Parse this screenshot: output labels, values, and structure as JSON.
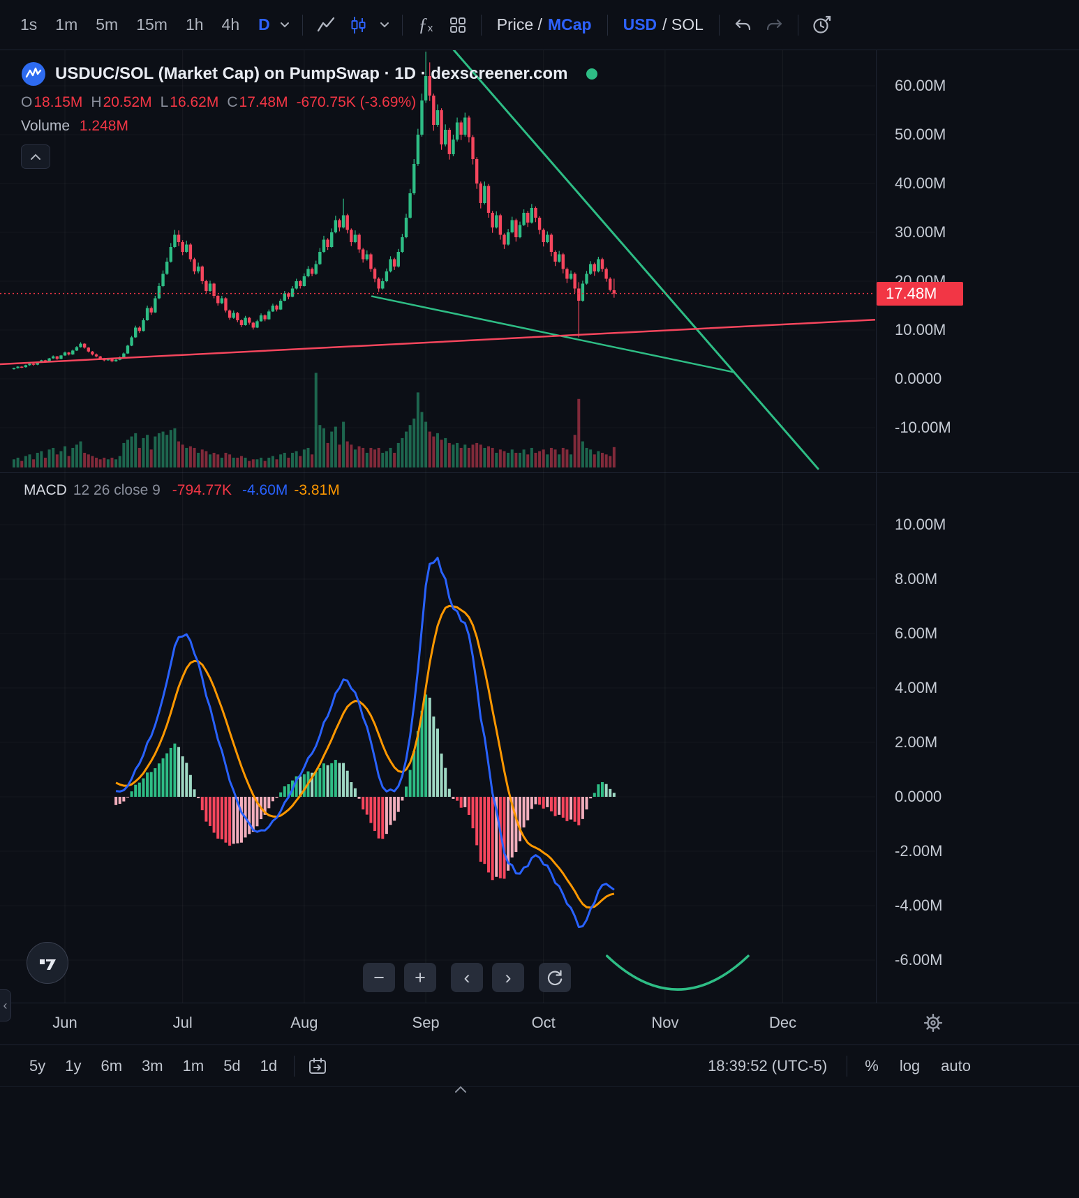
{
  "tb": {
    "tf": [
      "1s",
      "1m",
      "5m",
      "15m",
      "1h",
      "4h"
    ],
    "tf_active": "D",
    "price_label": "Price /",
    "mcap": "MCap",
    "usd": "USD",
    "sol": "/ SOL"
  },
  "hdr": {
    "title": "USDUC/SOL (Market Cap) on PumpSwap · 1D · dexscreener.com",
    "o_k": "O",
    "o": "18.15M",
    "h_k": "H",
    "h": "20.52M",
    "l_k": "L",
    "l": "16.62M",
    "c_k": "C",
    "c": "17.48M",
    "chg": "-670.75K (-3.69%)",
    "vol_k": "Volume",
    "vol": "1.248M"
  },
  "pax": [
    {
      "t": "60.00M",
      "v": 60
    },
    {
      "t": "50.00M",
      "v": 50
    },
    {
      "t": "40.00M",
      "v": 40
    },
    {
      "t": "30.00M",
      "v": 30
    },
    {
      "t": "20.00M",
      "v": 20
    },
    {
      "t": "10.00M",
      "v": 10
    },
    {
      "t": "0.0000",
      "v": 0
    },
    {
      "t": "-10.00M",
      "v": -10
    }
  ],
  "current": {
    "t": "17.48M",
    "v": 17.48
  },
  "macd": {
    "name": "MACD",
    "params": "12 26 close 9",
    "hist": "-794.77K",
    "macd": "-4.60M",
    "signal": "-3.81M"
  },
  "max": [
    {
      "t": "10.00M",
      "v": 10
    },
    {
      "t": "8.00M",
      "v": 8
    },
    {
      "t": "6.00M",
      "v": 6
    },
    {
      "t": "4.00M",
      "v": 4
    },
    {
      "t": "2.00M",
      "v": 2
    },
    {
      "t": "0.0000",
      "v": 0
    },
    {
      "t": "-2.00M",
      "v": -2
    },
    {
      "t": "-4.00M",
      "v": -4
    },
    {
      "t": "-6.00M",
      "v": -6
    }
  ],
  "months": [
    "Jun",
    "Jul",
    "Aug",
    "Sep",
    "Oct",
    "Nov",
    "Dec"
  ],
  "ranges": [
    "5y",
    "1y",
    "6m",
    "3m",
    "1m",
    "5d",
    "1d"
  ],
  "bt": {
    "clock": "18:39:52 (UTC-5)",
    "pct": "%",
    "log": "log",
    "auto": "auto"
  },
  "nav": {
    "minus": "−",
    "plus": "+",
    "left": "‹",
    "right": "›"
  },
  "chart_data": {
    "type": "candlestick",
    "title": "USDUC/SOL (Market Cap) on PumpSwap · 1D · dexscreener.com",
    "interval": "1D",
    "units": "USD market cap, millions",
    "x_axis_months": [
      "Jun",
      "Jul",
      "Aug",
      "Sep",
      "Oct",
      "Nov",
      "Dec"
    ],
    "price_axis_ticks": [
      "60.00M",
      "50.00M",
      "40.00M",
      "30.00M",
      "20.00M",
      "10.00M",
      "0.0000",
      "-10.00M"
    ],
    "last_bar": {
      "open": "18.15M",
      "high": "20.52M",
      "low": "16.62M",
      "close": "17.48M",
      "change": "-670.75K (-3.69%)",
      "volume": "1.248M"
    },
    "current": {
      "t": "17.48M",
      "v": 17.48
    },
    "ohlcv": [
      [
        2.0,
        2.3,
        1.9,
        2.2,
        0.5
      ],
      [
        2.2,
        2.6,
        2.1,
        2.5,
        0.6
      ],
      [
        2.5,
        2.6,
        2.2,
        2.4,
        0.4
      ],
      [
        2.4,
        2.9,
        2.3,
        2.8,
        0.7
      ],
      [
        2.8,
        3.2,
        2.7,
        3.1,
        0.8
      ],
      [
        3.1,
        3.2,
        2.7,
        2.9,
        0.5
      ],
      [
        2.9,
        3.5,
        2.8,
        3.4,
        0.9
      ],
      [
        3.4,
        3.9,
        3.3,
        3.8,
        1.0
      ],
      [
        3.8,
        3.9,
        3.3,
        3.5,
        0.6
      ],
      [
        3.5,
        4.3,
        3.4,
        4.2,
        1.1
      ],
      [
        4.2,
        4.8,
        4.1,
        4.6,
        1.2
      ],
      [
        4.6,
        4.7,
        3.9,
        4.1,
        0.8
      ],
      [
        4.1,
        4.9,
        4.0,
        4.8,
        1.0
      ],
      [
        4.8,
        5.6,
        4.7,
        5.4,
        1.3
      ],
      [
        5.4,
        5.5,
        4.8,
        5.0,
        0.7
      ],
      [
        5.0,
        6.0,
        4.9,
        5.8,
        1.2
      ],
      [
        5.8,
        6.7,
        5.7,
        6.5,
        1.4
      ],
      [
        6.5,
        7.5,
        6.4,
        7.2,
        1.6
      ],
      [
        7.2,
        7.3,
        6.2,
        6.4,
        0.9
      ],
      [
        6.4,
        6.5,
        5.4,
        5.6,
        0.8
      ],
      [
        5.6,
        5.7,
        4.8,
        5.0,
        0.7
      ],
      [
        5.0,
        5.2,
        4.4,
        4.6,
        0.6
      ],
      [
        4.6,
        4.7,
        4.0,
        4.2,
        0.5
      ],
      [
        4.2,
        4.3,
        3.6,
        3.8,
        0.6
      ],
      [
        3.8,
        4.3,
        3.7,
        4.1,
        0.5
      ],
      [
        4.1,
        4.2,
        3.4,
        3.6,
        0.6
      ],
      [
        3.6,
        4.1,
        3.5,
        3.9,
        0.5
      ],
      [
        3.9,
        4.6,
        3.8,
        4.4,
        0.7
      ],
      [
        4.4,
        5.4,
        4.3,
        5.2,
        1.5
      ],
      [
        5.2,
        7.0,
        5.1,
        6.8,
        1.7
      ],
      [
        6.8,
        8.8,
        6.7,
        8.5,
        1.9
      ],
      [
        8.5,
        10.9,
        8.4,
        10.5,
        2.1
      ],
      [
        10.5,
        10.8,
        9.4,
        9.8,
        1.2
      ],
      [
        9.8,
        12.4,
        9.7,
        12.0,
        1.8
      ],
      [
        12.0,
        15.0,
        11.9,
        14.5,
        2.0
      ],
      [
        14.5,
        14.8,
        13.1,
        13.6,
        1.1
      ],
      [
        13.6,
        17.0,
        13.5,
        16.5,
        1.9
      ],
      [
        16.5,
        19.6,
        16.3,
        19.0,
        2.1
      ],
      [
        19.0,
        22.2,
        18.8,
        21.5,
        2.2
      ],
      [
        21.5,
        24.8,
        21.3,
        24.0,
        2.0
      ],
      [
        24.0,
        27.8,
        23.8,
        27.0,
        2.3
      ],
      [
        27.0,
        30.5,
        26.8,
        29.5,
        2.4
      ],
      [
        29.5,
        30.4,
        27.2,
        28.0,
        1.6
      ],
      [
        28.0,
        28.4,
        25.3,
        26.0,
        1.4
      ],
      [
        26.0,
        28.3,
        25.8,
        27.5,
        1.2
      ],
      [
        27.5,
        27.8,
        24.0,
        24.5,
        1.3
      ],
      [
        24.5,
        24.8,
        21.4,
        22.0,
        1.2
      ],
      [
        22.0,
        23.8,
        21.6,
        23.0,
        0.9
      ],
      [
        23.0,
        23.2,
        19.4,
        20.0,
        1.1
      ],
      [
        20.0,
        20.3,
        17.4,
        18.0,
        1.0
      ],
      [
        18.0,
        20.1,
        17.8,
        19.5,
        0.8
      ],
      [
        19.5,
        19.7,
        16.5,
        17.0,
        0.9
      ],
      [
        17.0,
        17.2,
        15.0,
        15.5,
        0.8
      ],
      [
        15.5,
        17.0,
        15.3,
        16.5,
        0.6
      ],
      [
        16.5,
        16.7,
        13.6,
        14.0,
        0.9
      ],
      [
        14.0,
        14.2,
        12.1,
        12.5,
        0.8
      ],
      [
        12.5,
        14.0,
        12.3,
        13.5,
        0.6
      ],
      [
        13.5,
        13.7,
        11.6,
        12.0,
        0.6
      ],
      [
        12.0,
        12.2,
        10.6,
        11.0,
        0.7
      ],
      [
        11.0,
        12.9,
        10.9,
        12.5,
        0.6
      ],
      [
        12.5,
        12.7,
        11.1,
        11.5,
        0.4
      ],
      [
        11.5,
        11.7,
        10.1,
        10.5,
        0.5
      ],
      [
        10.5,
        12.1,
        10.4,
        11.8,
        0.5
      ],
      [
        11.8,
        13.4,
        11.7,
        13.0,
        0.6
      ],
      [
        13.0,
        13.2,
        11.8,
        12.2,
        0.4
      ],
      [
        12.2,
        14.2,
        12.1,
        13.8,
        0.6
      ],
      [
        13.8,
        15.4,
        13.7,
        15.0,
        0.7
      ],
      [
        15.0,
        15.2,
        13.8,
        14.2,
        0.5
      ],
      [
        14.2,
        16.4,
        14.1,
        16.0,
        0.8
      ],
      [
        16.0,
        18.0,
        15.9,
        17.5,
        0.9
      ],
      [
        17.5,
        17.7,
        16.3,
        16.8,
        0.6
      ],
      [
        16.8,
        19.0,
        16.7,
        18.5,
        0.9
      ],
      [
        18.5,
        20.5,
        18.3,
        20.0,
        1.0
      ],
      [
        20.0,
        20.2,
        18.5,
        19.0,
        0.7
      ],
      [
        19.0,
        21.6,
        18.9,
        21.0,
        1.1
      ],
      [
        21.0,
        23.1,
        20.8,
        22.5,
        1.2
      ],
      [
        22.5,
        22.8,
        21.0,
        21.5,
        0.8
      ],
      [
        21.5,
        24.2,
        21.3,
        23.5,
        5.8
      ],
      [
        23.5,
        26.8,
        23.3,
        26.0,
        2.6
      ],
      [
        26.0,
        29.3,
        25.8,
        28.5,
        2.4
      ],
      [
        28.5,
        28.8,
        26.4,
        27.0,
        1.5
      ],
      [
        27.0,
        30.8,
        26.8,
        30.0,
        2.2
      ],
      [
        30.0,
        33.4,
        29.8,
        32.5,
        2.5
      ],
      [
        32.5,
        32.8,
        30.2,
        31.0,
        1.4
      ],
      [
        31.0,
        36.9,
        30.8,
        33.5,
        2.8
      ],
      [
        33.5,
        33.8,
        29.8,
        30.5,
        1.6
      ],
      [
        30.5,
        30.8,
        27.2,
        28.0,
        1.4
      ],
      [
        28.0,
        30.4,
        27.8,
        29.5,
        1.1
      ],
      [
        29.5,
        29.8,
        25.8,
        26.5,
        1.3
      ],
      [
        26.5,
        26.8,
        23.8,
        24.5,
        1.2
      ],
      [
        24.5,
        26.3,
        24.2,
        25.5,
        0.9
      ],
      [
        25.5,
        25.8,
        21.9,
        22.5,
        1.2
      ],
      [
        22.5,
        22.8,
        19.8,
        20.5,
        1.1
      ],
      [
        20.5,
        20.8,
        17.8,
        18.5,
        1.2
      ],
      [
        18.5,
        20.6,
        18.3,
        20.0,
        0.9
      ],
      [
        20.0,
        22.6,
        19.8,
        22.0,
        1.0
      ],
      [
        22.0,
        25.1,
        21.8,
        24.5,
        1.2
      ],
      [
        24.5,
        24.8,
        22.3,
        23.0,
        0.9
      ],
      [
        23.0,
        26.6,
        22.8,
        26.0,
        1.5
      ],
      [
        26.0,
        29.7,
        25.8,
        29.0,
        1.8
      ],
      [
        29.0,
        33.8,
        28.8,
        33.0,
        2.2
      ],
      [
        33.0,
        38.9,
        32.8,
        38.0,
        2.6
      ],
      [
        38.0,
        45.0,
        37.7,
        44.0,
        3.0
      ],
      [
        44.0,
        51.2,
        43.6,
        50.0,
        4.6
      ],
      [
        50.0,
        58.4,
        49.6,
        57.0,
        3.4
      ],
      [
        57.0,
        67.0,
        56.5,
        62.0,
        2.8
      ],
      [
        62.0,
        64.8,
        56.9,
        58.0,
        2.2
      ],
      [
        58.0,
        58.4,
        50.8,
        52.0,
        1.9
      ],
      [
        52.0,
        56.2,
        51.6,
        55.0,
        2.1
      ],
      [
        55.0,
        55.4,
        46.9,
        48.0,
        1.7
      ],
      [
        48.0,
        52.1,
        47.6,
        51.0,
        1.8
      ],
      [
        51.0,
        51.4,
        44.9,
        46.0,
        1.5
      ],
      [
        46.0,
        50.0,
        45.6,
        49.0,
        1.4
      ],
      [
        49.0,
        53.5,
        48.6,
        52.5,
        1.5
      ],
      [
        52.5,
        52.9,
        48.9,
        50.0,
        1.2
      ],
      [
        50.0,
        54.5,
        49.6,
        53.5,
        1.4
      ],
      [
        53.5,
        53.9,
        48.4,
        49.5,
        1.2
      ],
      [
        49.5,
        49.9,
        43.9,
        45.0,
        1.4
      ],
      [
        45.0,
        45.4,
        38.9,
        40.0,
        1.5
      ],
      [
        40.0,
        40.4,
        34.9,
        36.0,
        1.4
      ],
      [
        36.0,
        40.4,
        35.7,
        39.5,
        1.2
      ],
      [
        39.5,
        39.9,
        33.0,
        34.0,
        1.3
      ],
      [
        34.0,
        34.4,
        29.9,
        31.0,
        1.2
      ],
      [
        31.0,
        34.3,
        30.8,
        33.5,
        0.9
      ],
      [
        33.5,
        33.8,
        28.5,
        29.5,
        1.1
      ],
      [
        29.5,
        29.8,
        26.6,
        27.5,
        1.0
      ],
      [
        27.5,
        30.7,
        27.3,
        30.0,
        0.9
      ],
      [
        30.0,
        33.2,
        29.8,
        32.5,
        1.1
      ],
      [
        32.5,
        32.8,
        28.1,
        29.0,
        0.9
      ],
      [
        29.0,
        32.2,
        28.8,
        31.5,
        0.9
      ],
      [
        31.5,
        34.7,
        31.3,
        34.0,
        1.1
      ],
      [
        34.0,
        34.4,
        31.1,
        32.0,
        0.8
      ],
      [
        32.0,
        35.8,
        31.8,
        35.0,
        1.2
      ],
      [
        35.0,
        35.3,
        32.1,
        33.0,
        0.9
      ],
      [
        33.0,
        33.3,
        29.6,
        30.5,
        1.0
      ],
      [
        30.5,
        30.8,
        27.1,
        28.0,
        1.1
      ],
      [
        28.0,
        30.2,
        27.8,
        29.5,
        0.8
      ],
      [
        29.5,
        29.8,
        25.1,
        26.0,
        1.2
      ],
      [
        26.0,
        26.3,
        23.1,
        24.0,
        1.1
      ],
      [
        24.0,
        26.2,
        23.8,
        25.5,
        0.8
      ],
      [
        25.5,
        25.8,
        21.6,
        22.5,
        1.2
      ],
      [
        22.5,
        22.8,
        19.6,
        20.5,
        1.1
      ],
      [
        20.5,
        22.2,
        20.3,
        21.5,
        0.8
      ],
      [
        21.5,
        21.8,
        17.6,
        18.5,
        2.0
      ],
      [
        18.5,
        19.8,
        8.5,
        16.0,
        4.2
      ],
      [
        16.0,
        20.1,
        15.8,
        19.5,
        1.6
      ],
      [
        19.5,
        22.1,
        19.3,
        21.5,
        1.2
      ],
      [
        21.5,
        24.1,
        21.3,
        23.5,
        1.1
      ],
      [
        23.5,
        23.8,
        21.1,
        22.0,
        0.8
      ],
      [
        22.0,
        25.0,
        21.8,
        24.5,
        1.0
      ],
      [
        24.5,
        24.8,
        21.9,
        22.5,
        0.9
      ],
      [
        22.5,
        22.8,
        19.9,
        20.5,
        0.8
      ],
      [
        20.5,
        20.8,
        17.9,
        18.2,
        0.7
      ],
      [
        18.15,
        20.52,
        16.62,
        17.48,
        1.248
      ]
    ],
    "trendlines": [
      {
        "name": "descending-resistance",
        "i1": 106,
        "v1": 73.0,
        "i2": 205,
        "v2": -18.4,
        "color": "#2ebd85",
        "width": 3
      },
      {
        "name": "minor-descending-line",
        "i1": 91.3,
        "v1": 16.9,
        "i2": 183.3,
        "v2": 1.4,
        "color": "#2ebd85",
        "width": 2.5
      },
      {
        "name": "ascending-support",
        "i1": -3.6,
        "v1": 3.0,
        "i2": 219.6,
        "v2": 12.1,
        "color": "#f6465d",
        "width": 2.5
      }
    ],
    "sub_chart": {
      "type": "macd",
      "params": {
        "fast": 12,
        "slow": 26,
        "source": "close",
        "signal": 9
      },
      "note": "MACD line = EMA12-EMA26 of ohlcv closes; signal = EMA9 of MACD; histogram = MACD-signal",
      "axis_ticks": [
        "10.00M",
        "8.00M",
        "6.00M",
        "4.00M",
        "2.00M",
        "0.0000",
        "-2.00M",
        "-4.00M",
        "-6.00M"
      ],
      "last_values": {
        "histogram": "-794.77K",
        "macd": "-4.60M",
        "signal": "-3.81M"
      },
      "colors": {
        "macd_line": "#2962ff",
        "signal_line": "#ff9800",
        "hist_up": "#2ebd85",
        "hist_up_falling": "#9fd9c4",
        "hist_down": "#f6465d",
        "hist_down_rising": "#f2aebc"
      }
    },
    "arc": {
      "name": "green-arc-annotation",
      "i1": 151.2,
      "i2": 187.2,
      "v_ends": -5.85,
      "v_min": -7.08,
      "color": "#2ebd85",
      "width": 3.5
    }
  }
}
